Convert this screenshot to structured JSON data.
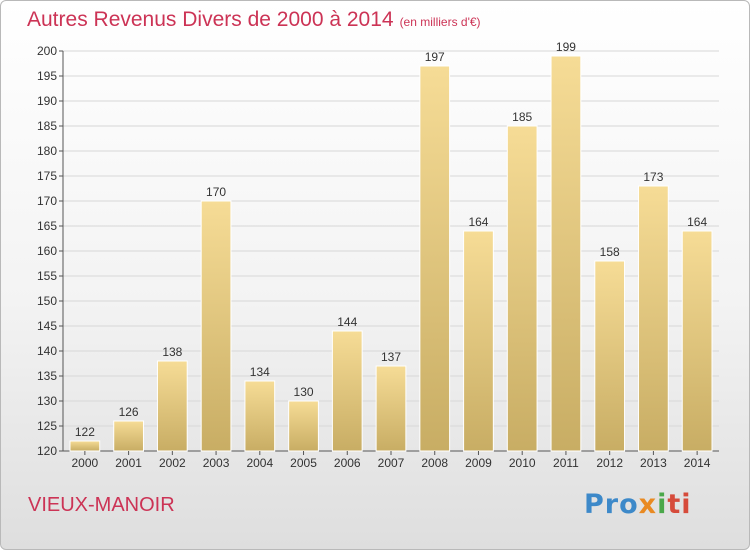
{
  "header": {
    "title": "Autres Revenus Divers de 2000 à 2014",
    "unit": "(en milliers d'€)"
  },
  "footer": {
    "commune": "VIEUX-MANOIR",
    "logo": [
      "Pro",
      "x",
      "i",
      "ti"
    ]
  },
  "colors": {
    "accent": "#cc3355",
    "bar_light": "#f6dc96",
    "bar_dark": "#c8ad64",
    "grid": "#d7d7d7"
  },
  "chart_data": {
    "type": "bar",
    "title": "Autres Revenus Divers de 2000 à 2014",
    "xlabel": "",
    "ylabel": "",
    "categories": [
      "2000",
      "2001",
      "2002",
      "2003",
      "2004",
      "2005",
      "2006",
      "2007",
      "2008",
      "2009",
      "2010",
      "2011",
      "2012",
      "2013",
      "2014"
    ],
    "values": [
      122,
      126,
      138,
      170,
      134,
      130,
      144,
      137,
      197,
      164,
      185,
      199,
      158,
      173,
      164
    ],
    "ylim": [
      120,
      200
    ],
    "yticks": [
      120,
      125,
      130,
      135,
      140,
      145,
      150,
      155,
      160,
      165,
      170,
      175,
      180,
      185,
      190,
      195,
      200
    ],
    "grid": true,
    "legend": "none"
  }
}
